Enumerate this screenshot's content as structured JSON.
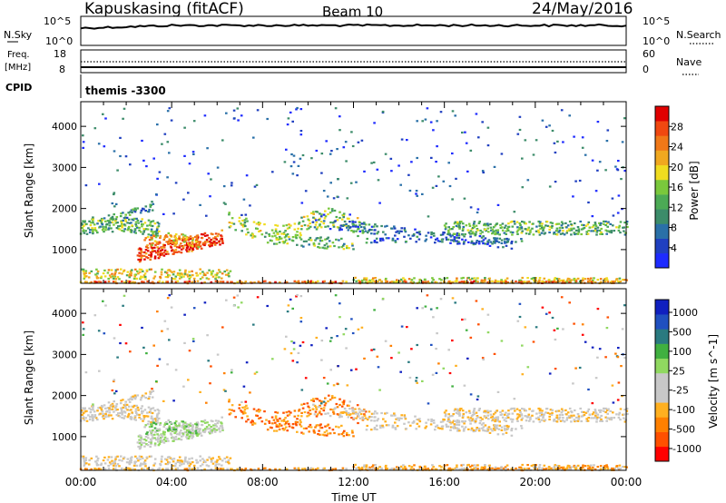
{
  "header": {
    "station": "Kapuskasing (fitACF)",
    "beam": "Beam 10",
    "date": "24/May/2016"
  },
  "top_panel": {
    "left_label": "N.Sky",
    "left_ticks": [
      "10^5",
      "10^0"
    ],
    "right_label": "N.Search",
    "right_ticks": [
      "10^5",
      "10^0"
    ]
  },
  "freq_panel": {
    "left_label_1": "Freq.",
    "left_label_2": "[MHz]",
    "left_ticks": [
      "18",
      "8"
    ],
    "right_label": "Nave",
    "right_ticks": [
      "60",
      "0"
    ],
    "cpid_label": "CPID",
    "cpid_value": "themis -3300"
  },
  "colors": {
    "power_scale": [
      "#1e2bff",
      "#2040c0",
      "#2a70a8",
      "#3c8c6a",
      "#4caa55",
      "#7ac83c",
      "#f0dc20",
      "#f0a820",
      "#f07818",
      "#f04810",
      "#e00000"
    ],
    "velocity_scale": [
      "#ff0000",
      "#ff5000",
      "#ff8000",
      "#ffb020",
      "#c8c8c8",
      "#c8c8c8",
      "#90d860",
      "#40b040",
      "#2a7a80",
      "#2050c0",
      "#1020c0"
    ]
  },
  "chart_data": [
    {
      "type": "heatmap",
      "title": "",
      "ylabel": "Slant Range [km]",
      "xlabel": "",
      "xlim": [
        "00:00",
        "24:00"
      ],
      "ylim": [
        180,
        4600
      ],
      "yticks": [
        "1000",
        "2000",
        "3000",
        "4000"
      ],
      "colorbar": {
        "label": "Power [dB]",
        "ticks": [
          "4",
          "8",
          "12",
          "16",
          "20",
          "24",
          "28"
        ],
        "range": [
          0,
          32
        ]
      },
      "features": [
        {
          "desc": "ionospheric scatter band",
          "time": [
            "00:00",
            "03:30"
          ],
          "range_km": [
            1300,
            1700
          ],
          "power_db": 14
        },
        {
          "desc": "strong near-range echoes",
          "time": [
            "03:00",
            "06:30"
          ],
          "range_km": [
            800,
            1400
          ],
          "power_db": 26
        },
        {
          "desc": "ground/near scatter band",
          "time": [
            "00:00",
            "24:00"
          ],
          "range_km": [
            200,
            400
          ],
          "power_db": 18
        },
        {
          "desc": "evening band",
          "time": [
            "19:00",
            "24:00"
          ],
          "range_km": [
            1400,
            1800
          ],
          "power_db": 12
        }
      ]
    },
    {
      "type": "heatmap",
      "title": "",
      "ylabel": "Slant Range [km]",
      "xlabel": "Time UT",
      "xlim": [
        "00:00",
        "24:00"
      ],
      "ylim": [
        180,
        4600
      ],
      "xticks": [
        "00:00",
        "04:00",
        "08:00",
        "12:00",
        "16:00",
        "20:00",
        "00:00"
      ],
      "yticks": [
        "1000",
        "2000",
        "3000",
        "4000"
      ],
      "colorbar": {
        "label": "Velocity [m s^-1]",
        "ticks": [
          "1000",
          "500",
          "100",
          "25",
          "-25",
          "-100",
          "-500",
          "-1000"
        ]
      },
      "features": [
        {
          "desc": "ground scatter (grey)",
          "time": [
            "00:00",
            "24:00"
          ],
          "range_km": [
            600,
            1900
          ],
          "velocity": 0
        },
        {
          "desc": "receding flow (orange)",
          "time": [
            "07:00",
            "12:30"
          ],
          "range_km": [
            900,
            2200
          ],
          "velocity": -300
        },
        {
          "desc": "approaching flow (green)",
          "time": [
            "03:30",
            "05:30"
          ],
          "range_km": [
            1000,
            1500
          ],
          "velocity": 200
        }
      ]
    }
  ]
}
